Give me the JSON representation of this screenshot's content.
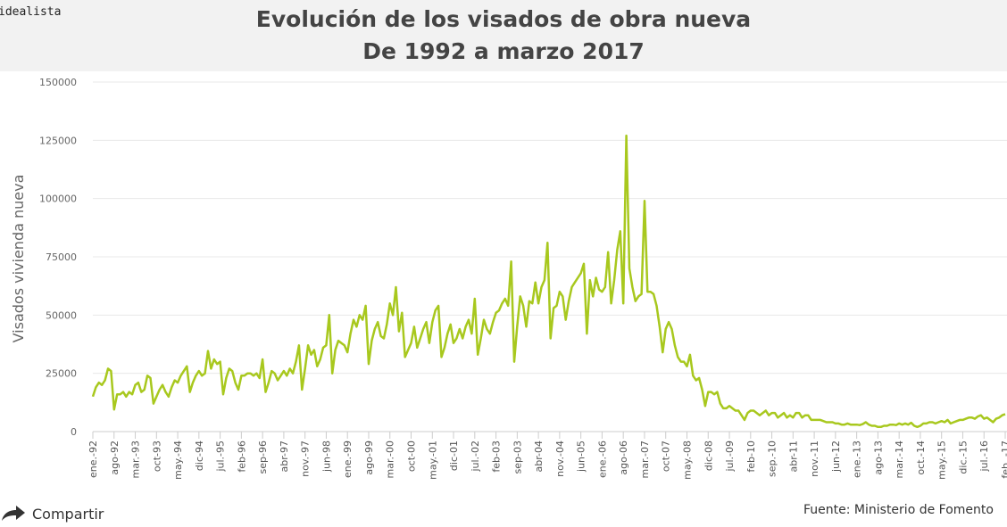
{
  "brand": "idealista",
  "footer": {
    "share_label": "Compartir",
    "source": "Fuente: Ministerio de Fomento"
  },
  "colors": {
    "line": "#a8c81e",
    "header_bg": "#f2f2f2",
    "grid": "#e8e8e8"
  },
  "chart_data": {
    "type": "line",
    "title": "Evolución de los visados de obra nueva",
    "subtitle": "De 1992 a marzo 2017",
    "xlabel": "",
    "ylabel": "Visados vivienda nueva",
    "ylim": [
      0,
      150000
    ],
    "yticks": [
      "0",
      "25000",
      "50000",
      "75000",
      "100000",
      "125000",
      "150000"
    ],
    "grid": true,
    "x_start": "ene-92",
    "x_end": "mar-17",
    "x_frequency": "monthly",
    "xtick_labels": [
      "ene.-92",
      "ago-92",
      "mar.-93",
      "oct-93",
      "may.-94",
      "dic-94",
      "jul.-95",
      "feb-96",
      "sep-96",
      "abr-97",
      "nov.-97",
      "jun-98",
      "ene.-99",
      "ago-99",
      "mar.-00",
      "oct-00",
      "may.-01",
      "dic-01",
      "jul.-02",
      "feb-03",
      "sep-03",
      "abr-04",
      "nov.-04",
      "jun-05",
      "ene.-06",
      "ago-06",
      "mar.-07",
      "oct-07",
      "may.-08",
      "dic-08",
      "jul.-09",
      "feb-10",
      "sep.-10",
      "abr-11",
      "nov.-11",
      "jun-12",
      "ene.-13",
      "ago-13",
      "mar.-14",
      "oct.-14",
      "may.-15",
      "dic.-15",
      "jul.-16",
      "feb. -17"
    ],
    "values": [
      15000,
      19000,
      21000,
      20000,
      22000,
      27000,
      26000,
      9500,
      16000,
      16000,
      17000,
      15000,
      17000,
      16000,
      20000,
      21000,
      17000,
      18000,
      24000,
      23000,
      12000,
      15000,
      18000,
      20000,
      17000,
      15000,
      19000,
      22000,
      21000,
      24000,
      26000,
      28000,
      17000,
      21000,
      24000,
      26000,
      24000,
      25000,
      34600,
      27000,
      31000,
      29000,
      30000,
      16000,
      23000,
      27000,
      26000,
      21000,
      18000,
      24000,
      24000,
      25000,
      25000,
      24000,
      25000,
      23000,
      31000,
      17000,
      21000,
      26000,
      25000,
      22000,
      24000,
      26000,
      24000,
      27000,
      25000,
      30000,
      37000,
      18000,
      27000,
      37000,
      33000,
      35000,
      28000,
      31000,
      36000,
      37000,
      50000,
      25000,
      35000,
      39000,
      38000,
      37000,
      34000,
      42000,
      48000,
      45000,
      50000,
      48000,
      54000,
      29000,
      39000,
      44000,
      47000,
      41000,
      40000,
      46000,
      55000,
      50000,
      62000,
      43000,
      51000,
      32000,
      35000,
      38000,
      45000,
      36000,
      40000,
      44000,
      47000,
      38000,
      47000,
      52000,
      54000,
      32000,
      36000,
      42000,
      46000,
      38000,
      40000,
      44000,
      40000,
      45000,
      48000,
      42000,
      57000,
      33000,
      40000,
      48000,
      44000,
      42000,
      47000,
      51000,
      52000,
      55000,
      57000,
      54000,
      73000,
      30000,
      45000,
      58000,
      54000,
      45000,
      56000,
      55000,
      64000,
      55000,
      62000,
      65000,
      81000,
      40000,
      53000,
      54000,
      60000,
      58000,
      48000,
      56000,
      62000,
      64000,
      66000,
      68000,
      72000,
      42000,
      65000,
      58000,
      66000,
      61000,
      60000,
      62000,
      77000,
      55000,
      65000,
      78000,
      86000,
      55000,
      127000,
      70000,
      62000,
      56000,
      58000,
      59000,
      99000,
      60000,
      60000,
      59000,
      54000,
      45000,
      34000,
      44000,
      47000,
      44000,
      37000,
      32000,
      30000,
      30000,
      28000,
      33000,
      24000,
      22000,
      23000,
      18000,
      11000,
      17000,
      17000,
      16000,
      17000,
      12000,
      10000,
      10000,
      11000,
      10000,
      9000,
      9000,
      7000,
      5000,
      8000,
      9000,
      9000,
      8000,
      7000,
      8000,
      9000,
      7000,
      8000,
      8000,
      6000,
      7000,
      8000,
      6000,
      7000,
      6000,
      8000,
      8000,
      6000,
      7000,
      7000,
      5000,
      5000,
      5000,
      5000,
      4500,
      4000,
      4000,
      4000,
      3500,
      3500,
      3000,
      3000,
      3500,
      3000,
      3000,
      3000,
      2800,
      3200,
      4000,
      3000,
      2500,
      2500,
      2000,
      2000,
      2500,
      2500,
      3000,
      3000,
      2800,
      3500,
      3000,
      3500,
      3000,
      3800,
      2500,
      2000,
      2500,
      3500,
      3500,
      4000,
      4000,
      3500,
      4000,
      4500,
      4000,
      5000,
      3500,
      4000,
      4500,
      5000,
      5000,
      5500,
      6000,
      6000,
      5500,
      6500,
      7000,
      5500,
      6000,
      5000,
      4000,
      5500,
      6000,
      7000,
      7500
    ]
  }
}
